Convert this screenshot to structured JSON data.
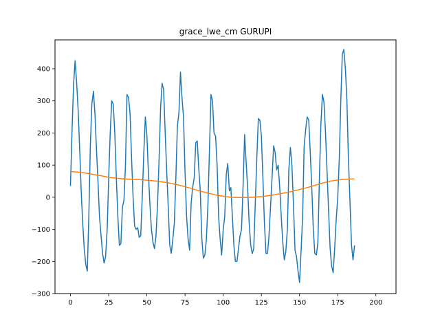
{
  "chart_data": {
    "type": "line",
    "title": "grace_lwe_cm GURUPI",
    "xlabel": "",
    "ylabel": "",
    "xlim": [
      -10.15,
      213.15
    ],
    "ylim": [
      -300,
      490
    ],
    "xticks": [
      0,
      25,
      50,
      75,
      100,
      125,
      150,
      175,
      200
    ],
    "yticks": [
      -300,
      -200,
      -100,
      0,
      100,
      200,
      300,
      400
    ],
    "grid": false,
    "legend": "none",
    "series": [
      {
        "color": "#1f77b4",
        "points": [
          [
            0,
            35
          ],
          [
            1,
            210
          ],
          [
            2,
            350
          ],
          [
            3,
            425
          ],
          [
            4,
            360
          ],
          [
            5,
            270
          ],
          [
            6,
            150
          ],
          [
            7,
            20
          ],
          [
            8,
            -80
          ],
          [
            9,
            -160
          ],
          [
            10,
            -210
          ],
          [
            11,
            -230
          ],
          [
            12,
            -60
          ],
          [
            13,
            160
          ],
          [
            14,
            290
          ],
          [
            15,
            330
          ],
          [
            16,
            260
          ],
          [
            17,
            150
          ],
          [
            18,
            50
          ],
          [
            19,
            -60
          ],
          [
            20,
            -120
          ],
          [
            21,
            -175
          ],
          [
            22,
            -205
          ],
          [
            23,
            -185
          ],
          [
            24,
            -100
          ],
          [
            25,
            60
          ],
          [
            26,
            200
          ],
          [
            27,
            300
          ],
          [
            28,
            290
          ],
          [
            29,
            200
          ],
          [
            30,
            60
          ],
          [
            31,
            -60
          ],
          [
            32,
            -150
          ],
          [
            33,
            -145
          ],
          [
            34,
            -30
          ],
          [
            35,
            -10
          ],
          [
            36,
            100
          ],
          [
            37,
            320
          ],
          [
            38,
            310
          ],
          [
            39,
            260
          ],
          [
            40,
            120
          ],
          [
            41,
            0
          ],
          [
            42,
            -90
          ],
          [
            43,
            -100
          ],
          [
            44,
            -95
          ],
          [
            45,
            -125
          ],
          [
            46,
            -120
          ],
          [
            47,
            0
          ],
          [
            48,
            140
          ],
          [
            49,
            250
          ],
          [
            50,
            195
          ],
          [
            51,
            80
          ],
          [
            52,
            -20
          ],
          [
            53,
            -100
          ],
          [
            54,
            -140
          ],
          [
            55,
            -160
          ],
          [
            56,
            -120
          ],
          [
            57,
            -20
          ],
          [
            58,
            120
          ],
          [
            59,
            280
          ],
          [
            60,
            355
          ],
          [
            61,
            335
          ],
          [
            62,
            200
          ],
          [
            63,
            80
          ],
          [
            64,
            -30
          ],
          [
            65,
            -150
          ],
          [
            66,
            -175
          ],
          [
            67,
            -130
          ],
          [
            68,
            -80
          ],
          [
            69,
            60
          ],
          [
            70,
            220
          ],
          [
            71,
            265
          ],
          [
            72,
            390
          ],
          [
            73,
            310
          ],
          [
            74,
            250
          ],
          [
            75,
            80
          ],
          [
            76,
            -60
          ],
          [
            77,
            -130
          ],
          [
            78,
            -165
          ],
          [
            79,
            -20
          ],
          [
            80,
            30
          ],
          [
            81,
            60
          ],
          [
            82,
            170
          ],
          [
            83,
            175
          ],
          [
            84,
            90
          ],
          [
            85,
            20
          ],
          [
            86,
            -130
          ],
          [
            87,
            -190
          ],
          [
            88,
            -180
          ],
          [
            89,
            -130
          ],
          [
            90,
            -20
          ],
          [
            91,
            150
          ],
          [
            92,
            320
          ],
          [
            93,
            300
          ],
          [
            94,
            200
          ],
          [
            95,
            190
          ],
          [
            96,
            100
          ],
          [
            97,
            -60
          ],
          [
            98,
            -130
          ],
          [
            99,
            -180
          ],
          [
            100,
            -100
          ],
          [
            101,
            -60
          ],
          [
            102,
            70
          ],
          [
            103,
            105
          ],
          [
            104,
            20
          ],
          [
            105,
            30
          ],
          [
            106,
            -60
          ],
          [
            107,
            -150
          ],
          [
            108,
            -200
          ],
          [
            109,
            -200
          ],
          [
            110,
            -160
          ],
          [
            111,
            -120
          ],
          [
            112,
            -100
          ],
          [
            113,
            30
          ],
          [
            114,
            195
          ],
          [
            115,
            110
          ],
          [
            116,
            30
          ],
          [
            117,
            -80
          ],
          [
            118,
            -150
          ],
          [
            119,
            -175
          ],
          [
            120,
            -160
          ],
          [
            121,
            -20
          ],
          [
            122,
            120
          ],
          [
            123,
            245
          ],
          [
            124,
            240
          ],
          [
            125,
            190
          ],
          [
            126,
            60
          ],
          [
            127,
            -80
          ],
          [
            128,
            -175
          ],
          [
            129,
            -175
          ],
          [
            130,
            -120
          ],
          [
            131,
            -30
          ],
          [
            132,
            60
          ],
          [
            133,
            160
          ],
          [
            134,
            140
          ],
          [
            135,
            85
          ],
          [
            136,
            100
          ],
          [
            137,
            30
          ],
          [
            138,
            -60
          ],
          [
            139,
            -140
          ],
          [
            140,
            -195
          ],
          [
            141,
            -170
          ],
          [
            142,
            -100
          ],
          [
            143,
            90
          ],
          [
            144,
            155
          ],
          [
            145,
            100
          ],
          [
            146,
            -20
          ],
          [
            147,
            -165
          ],
          [
            148,
            -185
          ],
          [
            149,
            -230
          ],
          [
            150,
            -265
          ],
          [
            151,
            -165
          ],
          [
            152,
            -60
          ],
          [
            153,
            160
          ],
          [
            154,
            210
          ],
          [
            155,
            250
          ],
          [
            156,
            240
          ],
          [
            157,
            140
          ],
          [
            158,
            30
          ],
          [
            159,
            -100
          ],
          [
            160,
            -175
          ],
          [
            161,
            -180
          ],
          [
            162,
            -140
          ],
          [
            163,
            60
          ],
          [
            164,
            230
          ],
          [
            165,
            320
          ],
          [
            166,
            295
          ],
          [
            167,
            200
          ],
          [
            168,
            80
          ],
          [
            169,
            -40
          ],
          [
            170,
            -160
          ],
          [
            171,
            -215
          ],
          [
            172,
            -235
          ],
          [
            173,
            -160
          ],
          [
            174,
            -70
          ],
          [
            175,
            0
          ],
          [
            176,
            120
          ],
          [
            177,
            300
          ],
          [
            178,
            445
          ],
          [
            179,
            460
          ],
          [
            180,
            400
          ],
          [
            181,
            300
          ],
          [
            182,
            120
          ],
          [
            183,
            -10
          ],
          [
            184,
            -150
          ],
          [
            185,
            -195
          ],
          [
            186,
            -150
          ]
        ]
      },
      {
        "color": "#ff7f0e",
        "points": [
          [
            0,
            80
          ],
          [
            5,
            78
          ],
          [
            10,
            75
          ],
          [
            15,
            71
          ],
          [
            20,
            67
          ],
          [
            25,
            62
          ],
          [
            30,
            59
          ],
          [
            35,
            57
          ],
          [
            40,
            56
          ],
          [
            45,
            55
          ],
          [
            50,
            53
          ],
          [
            55,
            51
          ],
          [
            60,
            48
          ],
          [
            65,
            44
          ],
          [
            70,
            39
          ],
          [
            75,
            33
          ],
          [
            80,
            26
          ],
          [
            85,
            19
          ],
          [
            90,
            13
          ],
          [
            95,
            7
          ],
          [
            100,
            3
          ],
          [
            105,
            0
          ],
          [
            110,
            -1
          ],
          [
            115,
            -1
          ],
          [
            120,
            0
          ],
          [
            125,
            2
          ],
          [
            130,
            5
          ],
          [
            135,
            9
          ],
          [
            140,
            13
          ],
          [
            145,
            18
          ],
          [
            150,
            24
          ],
          [
            155,
            30
          ],
          [
            160,
            37
          ],
          [
            165,
            44
          ],
          [
            170,
            50
          ],
          [
            175,
            54
          ],
          [
            180,
            56
          ],
          [
            184,
            57
          ],
          [
            186,
            57
          ]
        ]
      }
    ]
  }
}
